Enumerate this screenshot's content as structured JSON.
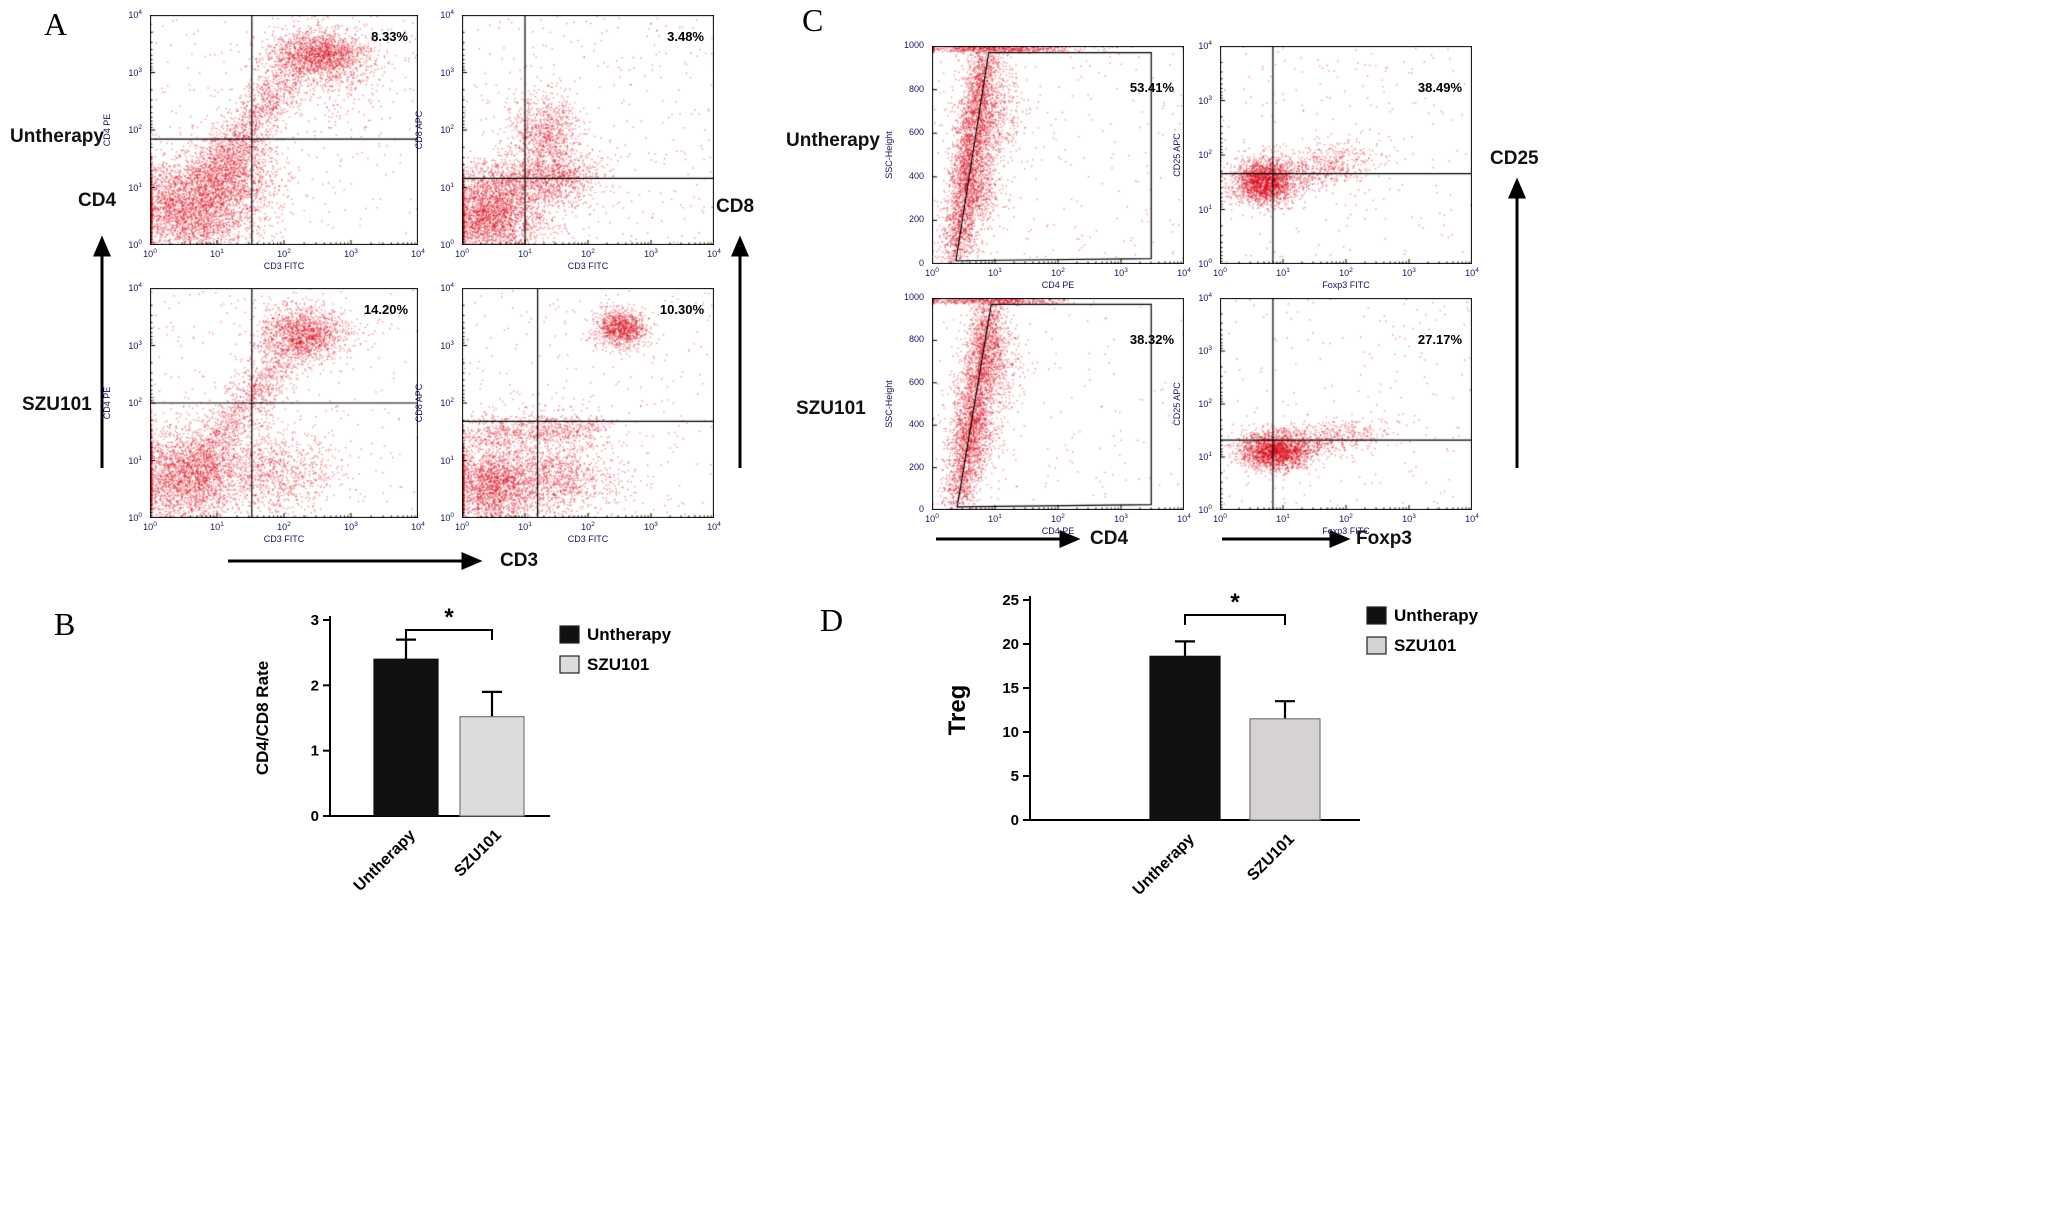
{
  "figure": {
    "panel_labels": {
      "A": "A",
      "B": "B",
      "C": "C",
      "D": "D"
    },
    "point_color": "#de0416"
  },
  "panelA": {
    "row1_label": "Untherapy",
    "row2_label": "SZU101",
    "left_axis_label": "CD4",
    "bottom_axis_label": "CD3",
    "right_axis_label": "CD8"
  },
  "panelC": {
    "row1_label": "Untherapy",
    "row2_label": "SZU101",
    "bottom_axis_label_1": "CD4",
    "bottom_axis_label_2": "Foxp3",
    "right_axis_label": "CD25"
  },
  "chart_data": [
    {
      "id": "A1",
      "type": "scatter",
      "panel": "A",
      "condition": "Untherapy",
      "xlabel": "CD3 FITC",
      "ylabel": "CD4 PE",
      "xticks": [
        "10^0",
        "10^1",
        "10^2",
        "10^3",
        "10^4"
      ],
      "yticks": [
        "10^0",
        "10^1",
        "10^2",
        "10^3",
        "10^4"
      ],
      "percent": "8.33%",
      "pd": 14,
      "quadrant": {
        "x": 0.38,
        "y": 0.54
      },
      "clusters": [
        {
          "t": "g",
          "c": [
            0.14,
            0.84
          ],
          "s": [
            0.12,
            0.11
          ],
          "n": 3000
        },
        {
          "t": "g",
          "c": [
            0.32,
            0.7
          ],
          "s": [
            0.09,
            0.1
          ],
          "n": 1000
        },
        {
          "t": "b",
          "p": [
            [
              0.2,
              0.75
            ],
            [
              0.52,
              0.25
            ]
          ],
          "s": [
            0.05,
            0.05
          ],
          "n": 1400
        },
        {
          "t": "g",
          "c": [
            0.62,
            0.17
          ],
          "s": [
            0.09,
            0.05
          ],
          "n": 1600
        },
        {
          "t": "g",
          "c": [
            0.7,
            0.24
          ],
          "s": [
            0.12,
            0.1
          ],
          "n": 400
        },
        {
          "t": "u",
          "n": 300
        }
      ]
    },
    {
      "id": "A2",
      "type": "scatter",
      "panel": "A",
      "condition": "Untherapy",
      "xlabel": "CD3 FITC",
      "ylabel": "CD8 APC",
      "xticks": [
        "10^0",
        "10^1",
        "10^2",
        "10^3",
        "10^4"
      ],
      "yticks": [
        "10^0",
        "10^1",
        "10^2",
        "10^3",
        "10^4"
      ],
      "percent": "3.48%",
      "pd": 14,
      "quadrant": {
        "x": 0.25,
        "y": 0.71
      },
      "clusters": [
        {
          "t": "g",
          "c": [
            0.1,
            0.88
          ],
          "s": [
            0.1,
            0.08
          ],
          "n": 2300
        },
        {
          "t": "b",
          "p": [
            [
              0.03,
              0.74
            ],
            [
              0.5,
              0.68
            ]
          ],
          "s": [
            0.05,
            0.05
          ],
          "n": 1000
        },
        {
          "t": "g",
          "c": [
            0.33,
            0.52
          ],
          "s": [
            0.07,
            0.09
          ],
          "n": 900
        },
        {
          "t": "g",
          "c": [
            0.3,
            0.75
          ],
          "s": [
            0.12,
            0.08
          ],
          "n": 600
        },
        {
          "t": "u",
          "n": 350
        }
      ]
    },
    {
      "id": "A3",
      "type": "scatter",
      "panel": "A",
      "condition": "SZU101",
      "xlabel": "CD3 FITC",
      "ylabel": "CD4 PE",
      "xticks": [
        "10^0",
        "10^1",
        "10^2",
        "10^3",
        "10^4"
      ],
      "yticks": [
        "10^0",
        "10^1",
        "10^2",
        "10^3",
        "10^4"
      ],
      "percent": "14.20%",
      "pd": 14,
      "quadrant": {
        "x": 0.38,
        "y": 0.5
      },
      "clusters": [
        {
          "t": "g",
          "c": [
            0.13,
            0.82
          ],
          "s": [
            0.11,
            0.11
          ],
          "n": 2600
        },
        {
          "t": "b",
          "p": [
            [
              0.18,
              0.78
            ],
            [
              0.5,
              0.28
            ]
          ],
          "s": [
            0.05,
            0.05
          ],
          "n": 1100
        },
        {
          "t": "g",
          "c": [
            0.57,
            0.2
          ],
          "s": [
            0.08,
            0.06
          ],
          "n": 1500
        },
        {
          "t": "g",
          "c": [
            0.47,
            0.8
          ],
          "s": [
            0.11,
            0.09
          ],
          "n": 900
        },
        {
          "t": "u",
          "n": 300
        }
      ]
    },
    {
      "id": "A4",
      "type": "scatter",
      "panel": "A",
      "condition": "SZU101",
      "xlabel": "CD3 FITC",
      "ylabel": "CD8 APC",
      "xticks": [
        "10^0",
        "10^1",
        "10^2",
        "10^3",
        "10^4"
      ],
      "yticks": [
        "10^0",
        "10^1",
        "10^2",
        "10^3",
        "10^4"
      ],
      "percent": "10.30%",
      "pd": 14,
      "quadrant": {
        "x": 0.3,
        "y": 0.58
      },
      "clusters": [
        {
          "t": "g",
          "c": [
            0.11,
            0.86
          ],
          "s": [
            0.1,
            0.09
          ],
          "n": 2200
        },
        {
          "t": "g",
          "c": [
            0.38,
            0.82
          ],
          "s": [
            0.13,
            0.08
          ],
          "n": 1100
        },
        {
          "t": "b",
          "p": [
            [
              0.03,
              0.63
            ],
            [
              0.55,
              0.6
            ]
          ],
          "s": [
            0.05,
            0.04
          ],
          "n": 800
        },
        {
          "t": "g",
          "c": [
            0.63,
            0.17
          ],
          "s": [
            0.05,
            0.04
          ],
          "n": 1000
        },
        {
          "t": "u",
          "n": 300
        }
      ]
    },
    {
      "id": "C1",
      "type": "scatter",
      "panel": "C",
      "condition": "Untherapy",
      "xlabel": "CD4 PE",
      "ylabel": "SSC-Height",
      "xticks": [
        "10^0",
        "10^1",
        "10^2",
        "10^3",
        "10^4"
      ],
      "yticks": [
        "0",
        "200",
        "400",
        "600",
        "800",
        "1000"
      ],
      "percent": "53.41%",
      "pd": 34,
      "gate": [
        [
          0.095,
          0.985
        ],
        [
          0.225,
          0.03
        ],
        [
          0.87,
          0.03
        ],
        [
          0.87,
          0.975
        ],
        [
          0.095,
          0.985
        ]
      ],
      "clusters": [
        {
          "t": "b",
          "p": [
            [
              0.09,
              0.97
            ],
            [
              0.21,
              0.04
            ]
          ],
          "s": [
            0.035,
            0.04
          ],
          "n": 2600
        },
        {
          "t": "g",
          "c": [
            0.23,
            0.3
          ],
          "s": [
            0.07,
            0.13
          ],
          "n": 700
        },
        {
          "t": "g",
          "c": [
            0.17,
            0.6
          ],
          "s": [
            0.05,
            0.13
          ],
          "n": 800
        },
        {
          "t": "b",
          "p": [
            [
              0.03,
              0.012
            ],
            [
              0.5,
              0.012
            ]
          ],
          "s": [
            0.1,
            0.008
          ],
          "n": 550
        },
        {
          "t": "u",
          "n": 220
        }
      ]
    },
    {
      "id": "C2",
      "type": "scatter",
      "panel": "C",
      "condition": "Untherapy",
      "xlabel": "Foxp3 FITC",
      "ylabel": "CD25 APC",
      "xticks": [
        "10^0",
        "10^1",
        "10^2",
        "10^3",
        "10^4"
      ],
      "yticks": [
        "10^0",
        "10^1",
        "10^2",
        "10^3",
        "10^4"
      ],
      "percent": "38.49%",
      "pd": 34,
      "quadrant": {
        "x": 0.21,
        "y": 0.585
      },
      "clusters": [
        {
          "t": "g",
          "c": [
            0.17,
            0.62
          ],
          "s": [
            0.06,
            0.05
          ],
          "n": 1900
        },
        {
          "t": "b",
          "p": [
            [
              0.13,
              0.64
            ],
            [
              0.55,
              0.5
            ]
          ],
          "s": [
            0.07,
            0.05
          ],
          "n": 800
        },
        {
          "t": "u",
          "n": 220
        }
      ]
    },
    {
      "id": "C3",
      "type": "scatter",
      "panel": "C",
      "condition": "SZU101",
      "xlabel": "CD4 PE",
      "ylabel": "SSC-Height",
      "xticks": [
        "10^0",
        "10^1",
        "10^2",
        "10^3",
        "10^4"
      ],
      "yticks": [
        "0",
        "200",
        "400",
        "600",
        "800",
        "1000"
      ],
      "percent": "38.32%",
      "pd": 34,
      "gate": [
        [
          0.1,
          0.985
        ],
        [
          0.235,
          0.03
        ],
        [
          0.87,
          0.03
        ],
        [
          0.87,
          0.975
        ],
        [
          0.1,
          0.985
        ]
      ],
      "clusters": [
        {
          "t": "b",
          "p": [
            [
              0.1,
              0.97
            ],
            [
              0.23,
              0.04
            ]
          ],
          "s": [
            0.035,
            0.04
          ],
          "n": 2400
        },
        {
          "t": "g",
          "c": [
            0.24,
            0.3
          ],
          "s": [
            0.06,
            0.12
          ],
          "n": 650
        },
        {
          "t": "g",
          "c": [
            0.17,
            0.62
          ],
          "s": [
            0.05,
            0.12
          ],
          "n": 700
        },
        {
          "t": "b",
          "p": [
            [
              0.03,
              0.012
            ],
            [
              0.45,
              0.012
            ]
          ],
          "s": [
            0.09,
            0.008
          ],
          "n": 450
        },
        {
          "t": "u",
          "n": 140
        }
      ]
    },
    {
      "id": "C4",
      "type": "scatter",
      "panel": "C",
      "condition": "SZU101",
      "xlabel": "Foxp3 FITC",
      "ylabel": "CD25 APC",
      "xticks": [
        "10^0",
        "10^1",
        "10^2",
        "10^3",
        "10^4"
      ],
      "yticks": [
        "10^0",
        "10^1",
        "10^2",
        "10^3",
        "10^4"
      ],
      "percent": "27.17%",
      "pd": 34,
      "quadrant": {
        "x": 0.21,
        "y": 0.67
      },
      "clusters": [
        {
          "t": "g",
          "c": [
            0.22,
            0.72
          ],
          "s": [
            0.07,
            0.045
          ],
          "n": 1900
        },
        {
          "t": "b",
          "p": [
            [
              0.15,
              0.74
            ],
            [
              0.58,
              0.62
            ]
          ],
          "s": [
            0.07,
            0.04
          ],
          "n": 700
        },
        {
          "t": "u",
          "n": 200
        }
      ]
    },
    {
      "id": "B",
      "type": "bar",
      "ylabel": "CD4/CD8 Rate",
      "categories": [
        "Untherapy",
        "SZU101"
      ],
      "values": [
        2.4,
        1.52
      ],
      "errors": [
        0.3,
        0.38
      ],
      "ylim": [
        0,
        3
      ],
      "yticks": [
        0,
        1,
        2,
        3
      ],
      "bar_colors": [
        "#111111",
        "#dcdcdc"
      ],
      "legend": [
        {
          "label": "Untherapy",
          "color": "#111111"
        },
        {
          "label": "SZU101",
          "color": "#dcdcdc"
        }
      ],
      "significance": "*"
    },
    {
      "id": "D",
      "type": "bar",
      "ylabel": "Treg",
      "categories": [
        "Untherapy",
        "SZU101"
      ],
      "values": [
        18.6,
        11.5
      ],
      "errors": [
        1.7,
        2.0
      ],
      "ylim": [
        0,
        25
      ],
      "yticks": [
        0,
        5,
        10,
        15,
        20,
        25
      ],
      "bar_colors": [
        "#111111",
        "#d6d2d2"
      ],
      "legend": [
        {
          "label": "Untherapy",
          "color": "#111111"
        },
        {
          "label": "SZU101",
          "color": "#d6d2d2"
        }
      ],
      "significance": "*"
    }
  ]
}
